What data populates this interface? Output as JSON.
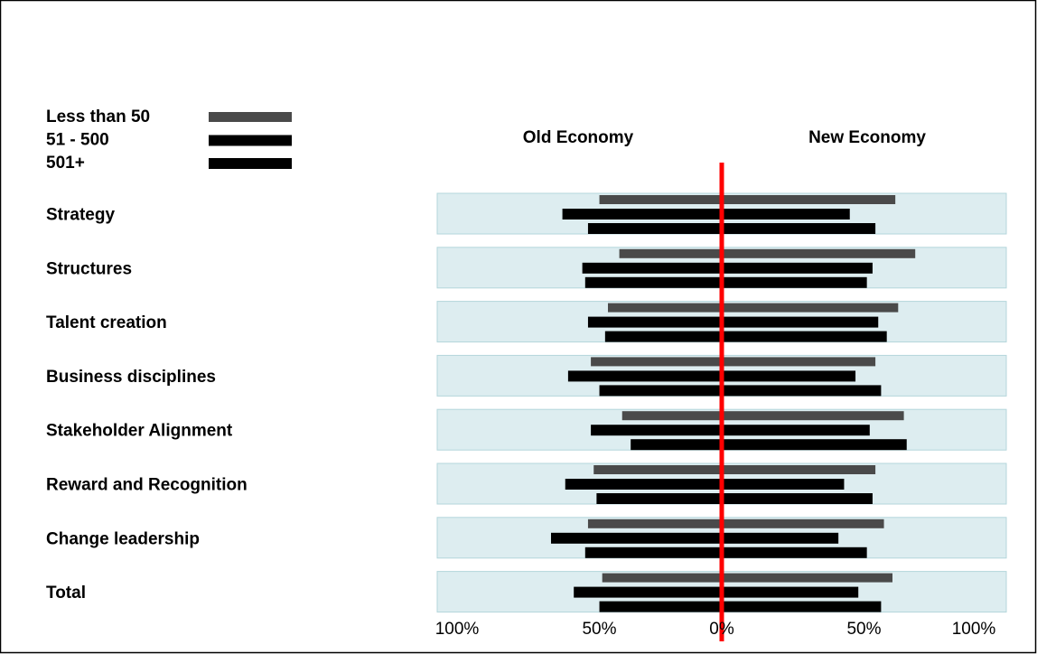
{
  "chart_data": {
    "type": "diverging_bar",
    "left_title": "Old Economy",
    "right_title": "New Economy",
    "categories": [
      "Strategy",
      "Structures",
      "Talent creation",
      "Business disciplines",
      "Stakeholder Alignment",
      "Reward and Recognition",
      "Change leadership",
      "Total"
    ],
    "series": [
      {
        "name": "Less than 50",
        "color": "#4a4a4a",
        "old": [
          43,
          36,
          40,
          46,
          35,
          45,
          47,
          42
        ],
        "new": [
          61,
          68,
          62,
          54,
          64,
          54,
          57,
          60
        ]
      },
      {
        "name": "51 - 500",
        "color": "#000000",
        "old": [
          56,
          49,
          47,
          54,
          46,
          55,
          60,
          52
        ],
        "new": [
          45,
          53,
          55,
          47,
          52,
          43,
          41,
          48
        ]
      },
      {
        "name": "501+",
        "color": "#000000",
        "old": [
          47,
          48,
          41,
          43,
          32,
          44,
          48,
          43
        ],
        "new": [
          54,
          51,
          58,
          56,
          65,
          53,
          51,
          56
        ]
      }
    ],
    "xlim": [
      0,
      100
    ],
    "xticks_old": [
      {
        "value": 100,
        "label": "100%"
      },
      {
        "value": 50,
        "label": "50%"
      }
    ],
    "xticks_new": [
      {
        "value": 0,
        "label": "0%"
      },
      {
        "value": 50,
        "label": "50%"
      },
      {
        "value": 100,
        "label": "100%"
      }
    ],
    "band_color": "#ddedf0",
    "zero_line_color": "#ff0000"
  }
}
